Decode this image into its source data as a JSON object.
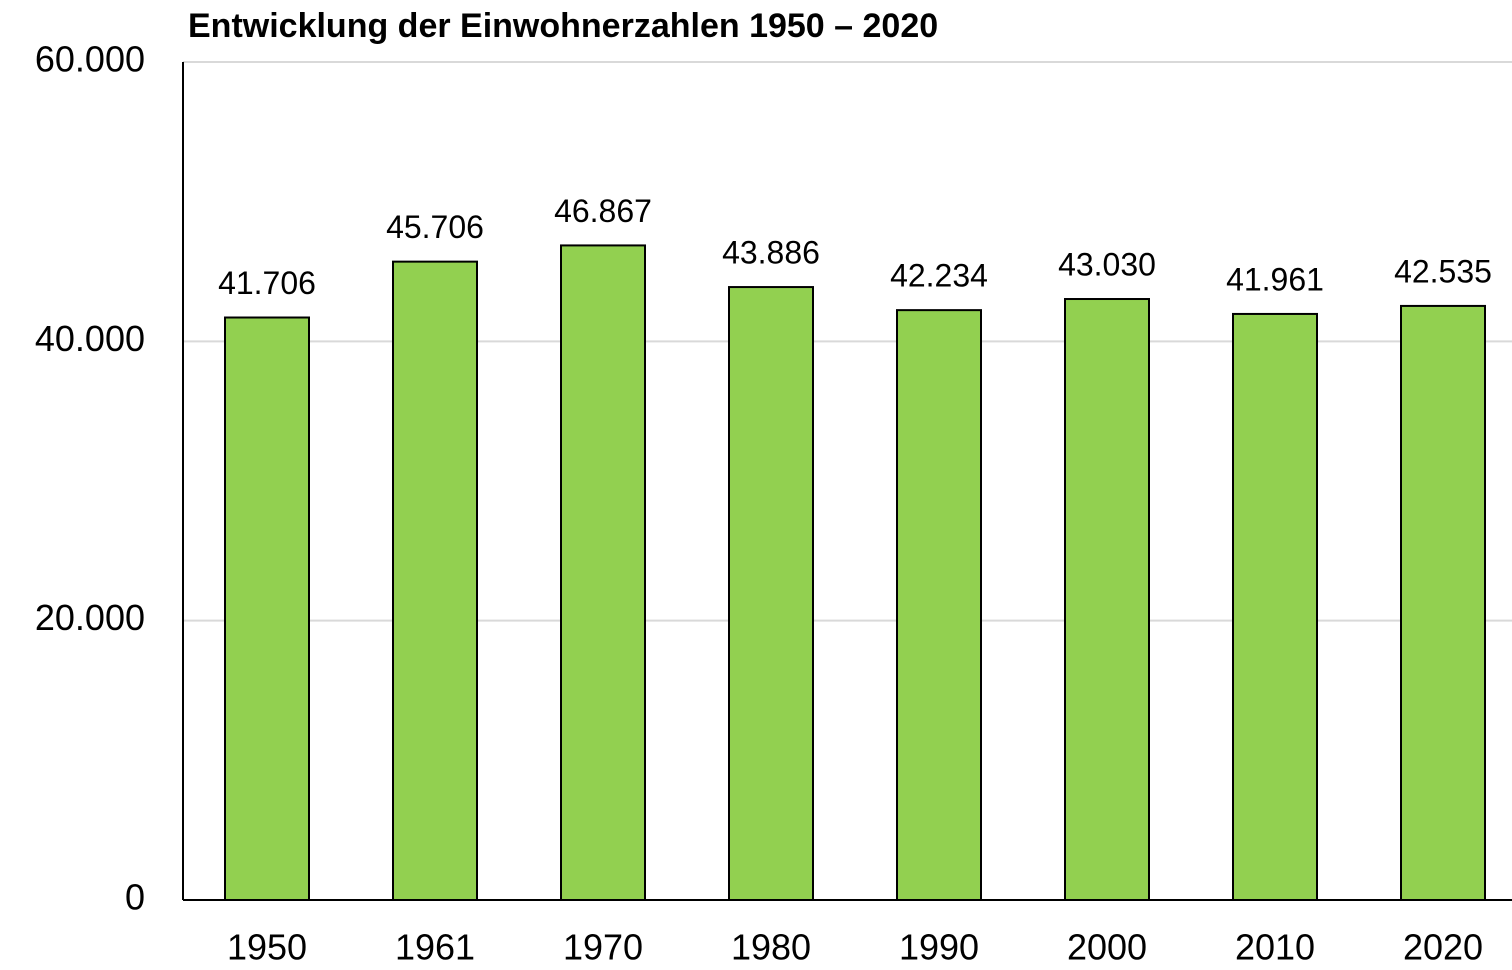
{
  "chart_data": {
    "type": "bar",
    "title": "Entwicklung der Einwohnerzahlen 1950 – 2020",
    "categories": [
      "1950",
      "1961",
      "1970",
      "1980",
      "1990",
      "2000",
      "2010",
      "2020"
    ],
    "values": [
      41706,
      45706,
      46867,
      43886,
      42234,
      43030,
      41961,
      42535
    ],
    "value_labels": [
      "41.706",
      "45.706",
      "46.867",
      "43.886",
      "42.234",
      "43.030",
      "41.961",
      "42.535"
    ],
    "color": "#92d050",
    "ylim": [
      0,
      60000
    ],
    "yticks": [
      0,
      {
        "value": 20000,
        "label": "20.000"
      },
      {
        "value": 40000,
        "label": "40.000"
      },
      {
        "value": 60000,
        "label": "60.000"
      }
    ],
    "grid": true
  }
}
